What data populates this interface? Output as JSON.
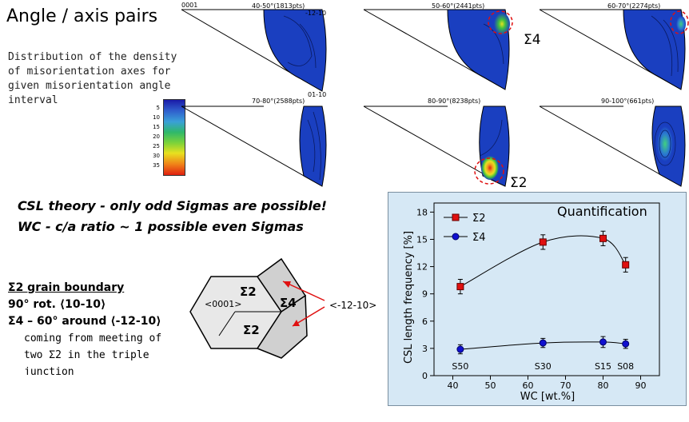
{
  "heading": "Angle / axis pairs",
  "description": "Distribution of the density of misorientation axes for given misorientation angle interval",
  "colorbar": {
    "ticks": [
      "5",
      "10",
      "15",
      "20",
      "25",
      "30",
      "35"
    ],
    "colors": [
      "#1a1aa8",
      "#2f5ccc",
      "#3aa0d8",
      "#2fb86a",
      "#7ad23a",
      "#e8e020",
      "#f08018",
      "#e02010"
    ]
  },
  "pole_figures": {
    "corner_labels": {
      "left": "0001",
      "right": "-12-10",
      "bottom": "01-10"
    },
    "panels": [
      {
        "title": "40-50°(1813pts)"
      },
      {
        "title": "50-60°(2441pts)"
      },
      {
        "title": "60-70°(2274pts)"
      },
      {
        "title": "70-80°(2588pts)"
      },
      {
        "title": "80-90°(8238pts)"
      },
      {
        "title": "90-100°(661pts)"
      }
    ],
    "sigma4_label": "Σ4",
    "sigma2_label": "Σ2"
  },
  "theory": {
    "line1": "CSL theory - only odd Sigmas are possible!",
    "line2": "WC - c/a ratio ~ 1 possible even Sigmas"
  },
  "grain_boundary": {
    "title": "Σ2 grain boundary",
    "line1": "90° rot. ⟨10-10⟩",
    "line2": "Σ4 – 60° around ⟨-12-10⟩",
    "line3": "coming from meeting of",
    "line4": "two Σ2 in the triple",
    "line5": "junction"
  },
  "diagram": {
    "left_label": "<0001>",
    "top_label": "Σ2",
    "bottom_label": "Σ2",
    "right_label": "Σ4",
    "arrow_label": "<-12-10>"
  },
  "chart_data": {
    "type": "scatter",
    "title": "Quantification",
    "xlabel": "WC [wt.%]",
    "ylabel": "CSL length frequency [%]",
    "xlim": [
      35,
      95
    ],
    "ylim": [
      0,
      19
    ],
    "xticks": [
      40,
      50,
      60,
      70,
      80,
      90
    ],
    "yticks": [
      0,
      3,
      6,
      9,
      12,
      15,
      18
    ],
    "legend_position": "top-left",
    "series": [
      {
        "name": "Σ2",
        "color": "#e01010",
        "marker": "square",
        "x": [
          42,
          64,
          80,
          86
        ],
        "y": [
          9.8,
          14.7,
          15.1,
          12.2
        ],
        "err": [
          0.8,
          0.8,
          0.8,
          0.8
        ]
      },
      {
        "name": "Σ4",
        "color": "#1010d0",
        "marker": "circle",
        "x": [
          42,
          64,
          80,
          86
        ],
        "y": [
          2.9,
          3.6,
          3.7,
          3.5
        ],
        "err": [
          0.5,
          0.5,
          0.6,
          0.5
        ]
      }
    ],
    "sample_labels": [
      {
        "x": 42,
        "text": "S50"
      },
      {
        "x": 64,
        "text": "S30"
      },
      {
        "x": 80,
        "text": "S15"
      },
      {
        "x": 86,
        "text": "S08"
      }
    ]
  }
}
